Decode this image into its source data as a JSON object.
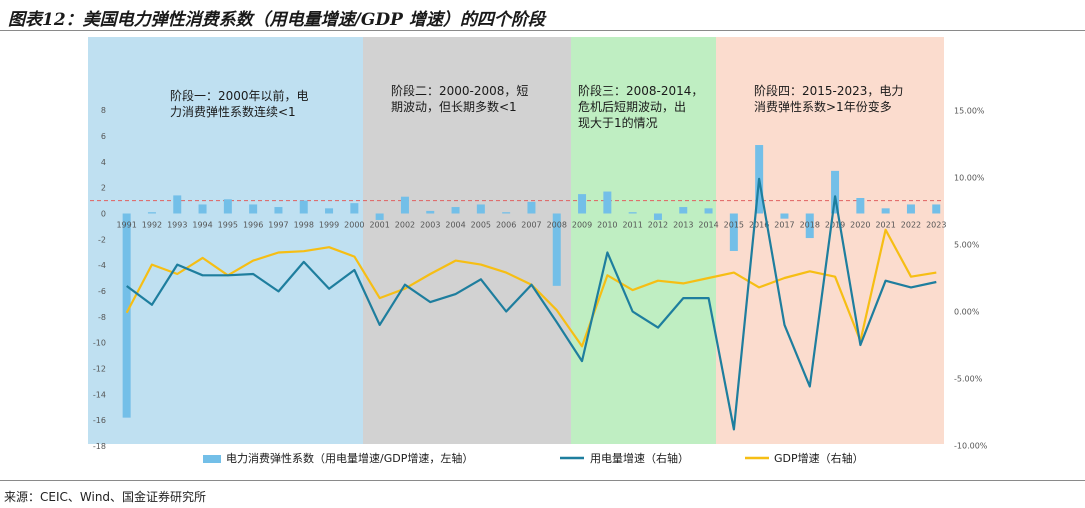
{
  "figure_title": "图表12：美国电力弹性消费系数（用电量增速/GDP 增速）的四个阶段",
  "source": "来源：CEIC、Wind、国金证券研究所",
  "colors": {
    "bar": "#73bfe8",
    "electricity_line": "#1e7e9e",
    "gdp_line": "#f6be14",
    "dashed_ref": "#e06060",
    "phase1_bg": "#bfe0f1",
    "phase2_bg": "#d2d2d2",
    "phase3_bg": "#bfeec2",
    "phase4_bg": "#fbdcce"
  },
  "phases": [
    {
      "text_line1": "阶段一：2000年以前，电",
      "text_line2": "力消费弹性系数连续<1",
      "text_line3": "",
      "start": "1990",
      "end": "2000"
    },
    {
      "text_line1": "阶段二：2000-2008，短",
      "text_line2": "期波动，但长期多数<1",
      "text_line3": "",
      "start": "2000",
      "end": "2008"
    },
    {
      "text_line1": "阶段三：2008-2014，",
      "text_line2": "危机后短期波动，出",
      "text_line3": "现大于1的情况",
      "start": "2008",
      "end": "2014"
    },
    {
      "text_line1": "阶段四：2015-2023，电力",
      "text_line2": "消费弹性系数>1年份变多",
      "text_line3": "",
      "start": "2014",
      "end": "2023"
    }
  ],
  "chart_data": {
    "type": "bar+line",
    "categories": [
      "1991",
      "1992",
      "1993",
      "1994",
      "1995",
      "1996",
      "1997",
      "1998",
      "1999",
      "2000",
      "2001",
      "2002",
      "2003",
      "2004",
      "2005",
      "2006",
      "2007",
      "2008",
      "2009",
      "2010",
      "2011",
      "2012",
      "2013",
      "2014",
      "2015",
      "2016",
      "2017",
      "2018",
      "2019",
      "2020",
      "2021",
      "2022",
      "2023"
    ],
    "left_axis": {
      "ylim": [
        -18,
        8
      ],
      "ticks": [
        "8",
        "6",
        "4",
        "2",
        "0",
        "-2",
        "-4",
        "-6",
        "-8",
        "-10",
        "-12",
        "-14",
        "-16",
        "-18"
      ]
    },
    "right_axis": {
      "ylim": [
        -10,
        15
      ],
      "ticks": [
        "15.00%",
        "10.00%",
        "5.00%",
        "0.00%",
        "-5.00%",
        "-10.00%"
      ]
    },
    "reference_line_value": 1,
    "series": [
      {
        "name": "电力消费弹性系数（用电量增速/GDP增速，左轴）",
        "type": "bar",
        "axis": "left",
        "values": [
          -15.8,
          0.1,
          1.4,
          0.7,
          1.1,
          0.7,
          0.5,
          1.0,
          0.4,
          0.8,
          -0.5,
          1.3,
          0.2,
          0.5,
          0.7,
          0.1,
          0.9,
          -5.6,
          1.5,
          1.7,
          0.1,
          -0.5,
          0.5,
          0.4,
          -2.9,
          5.3,
          -0.4,
          -1.9,
          3.3,
          1.2,
          0.4,
          0.7,
          0.7
        ]
      },
      {
        "name": "用电量增速（右轴）",
        "type": "line",
        "axis": "right",
        "values": [
          1.9,
          0.5,
          3.5,
          2.7,
          2.7,
          2.8,
          1.5,
          3.7,
          1.7,
          3.1,
          -1.0,
          2.0,
          0.7,
          1.3,
          2.4,
          0.0,
          2.0,
          -0.8,
          -3.7,
          4.4,
          0.0,
          -1.2,
          1.0,
          1.0,
          -8.8,
          9.9,
          -1.0,
          -5.6,
          8.6,
          -2.5,
          2.3,
          1.8,
          2.2
        ]
      },
      {
        "name": "GDP增速（右轴）",
        "type": "line",
        "axis": "right",
        "values": [
          -0.1,
          3.5,
          2.8,
          4.0,
          2.7,
          3.8,
          4.4,
          4.5,
          4.8,
          4.1,
          1.0,
          1.7,
          2.8,
          3.8,
          3.5,
          2.9,
          2.0,
          0.1,
          -2.6,
          2.7,
          1.6,
          2.3,
          2.1,
          2.5,
          2.9,
          1.8,
          2.5,
          3.0,
          2.6,
          -2.2,
          6.1,
          2.6,
          2.9
        ]
      }
    ]
  }
}
